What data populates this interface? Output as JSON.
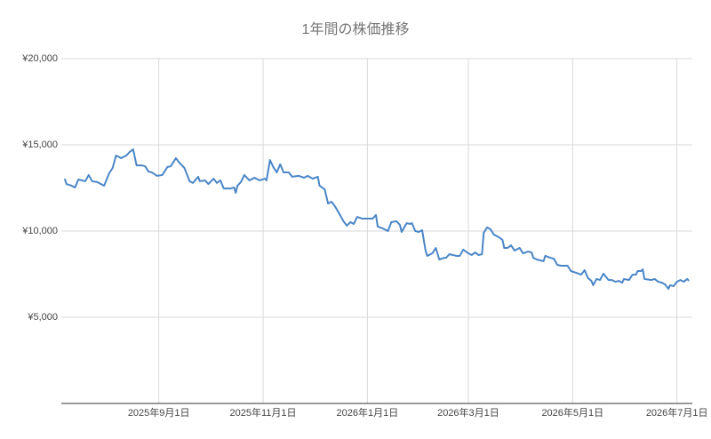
{
  "chart_data": {
    "type": "line",
    "title": "1年間の株価推移",
    "x": [
      "2025-07-08",
      "2025-07-09",
      "2025-07-12",
      "2025-07-14",
      "2025-07-16",
      "2025-07-20",
      "2025-07-22",
      "2025-07-24",
      "2025-07-27",
      "2025-07-31",
      "2025-08-03",
      "2025-08-05",
      "2025-08-07",
      "2025-08-10",
      "2025-08-13",
      "2025-08-15",
      "2025-08-17",
      "2025-08-19",
      "2025-08-22",
      "2025-08-24",
      "2025-08-26",
      "2025-08-28",
      "2025-08-31",
      "2025-09-03",
      "2025-09-06",
      "2025-09-08",
      "2025-09-11",
      "2025-09-13",
      "2025-09-16",
      "2025-09-19",
      "2025-09-21",
      "2025-09-24",
      "2025-09-25",
      "2025-09-28",
      "2025-09-30",
      "2025-10-03",
      "2025-10-05",
      "2025-10-07",
      "2025-10-09",
      "2025-10-13",
      "2025-10-15",
      "2025-10-16",
      "2025-10-17",
      "2025-10-19",
      "2025-10-21",
      "2025-10-24",
      "2025-10-27",
      "2025-10-30",
      "2025-11-02",
      "2025-11-03",
      "2025-11-05",
      "2025-11-07",
      "2025-11-09",
      "2025-11-11",
      "2025-11-13",
      "2025-11-16",
      "2025-11-18",
      "2025-11-22",
      "2025-11-25",
      "2025-11-27",
      "2025-11-30",
      "2025-12-03",
      "2025-12-04",
      "2025-12-07",
      "2025-12-09",
      "2025-12-11",
      "2025-12-13",
      "2025-12-16",
      "2025-12-18",
      "2025-12-20",
      "2025-12-22",
      "2025-12-24",
      "2025-12-26",
      "2025-12-29",
      "2025-12-31",
      "2026-01-04",
      "2026-01-06",
      "2026-01-07",
      "2026-01-10",
      "2026-01-13",
      "2026-01-15",
      "2026-01-18",
      "2026-01-20",
      "2026-01-21",
      "2026-01-24",
      "2026-01-26",
      "2026-01-27",
      "2026-01-29",
      "2026-01-31",
      "2026-02-02",
      "2026-02-04",
      "2026-02-05",
      "2026-02-08",
      "2026-02-10",
      "2026-02-12",
      "2026-02-15",
      "2026-02-16",
      "2026-02-18",
      "2026-02-22",
      "2026-02-24",
      "2026-02-26",
      "2026-03-01",
      "2026-03-03",
      "2026-03-05",
      "2026-03-07",
      "2026-03-09",
      "2026-03-10",
      "2026-03-12",
      "2026-03-14",
      "2026-03-16",
      "2026-03-19",
      "2026-03-21",
      "2026-03-22",
      "2026-03-24",
      "2026-03-26",
      "2026-03-28",
      "2026-03-31",
      "2026-04-02",
      "2026-04-05",
      "2026-04-07",
      "2026-04-08",
      "2026-04-10",
      "2026-04-14",
      "2026-04-15",
      "2026-04-18",
      "2026-04-20",
      "2026-04-22",
      "2026-04-24",
      "2026-04-28",
      "2026-04-30",
      "2026-05-03",
      "2026-05-06",
      "2026-05-08",
      "2026-05-10",
      "2026-05-12",
      "2026-05-13",
      "2026-05-15",
      "2026-05-17",
      "2026-05-19",
      "2026-05-22",
      "2026-05-24",
      "2026-05-26",
      "2026-05-28",
      "2026-05-30",
      "2026-05-31",
      "2026-06-03",
      "2026-06-05",
      "2026-06-07",
      "2026-06-08",
      "2026-06-10",
      "2026-06-11",
      "2026-06-12",
      "2026-06-16",
      "2026-06-18",
      "2026-06-20",
      "2026-06-22",
      "2026-06-24",
      "2026-06-26",
      "2026-06-27",
      "2026-06-29",
      "2026-07-01",
      "2026-07-03",
      "2026-07-05",
      "2026-07-07",
      "2026-07-08"
    ],
    "values": [
      13040,
      12730,
      12630,
      12530,
      12990,
      12890,
      13250,
      12890,
      12840,
      12630,
      13350,
      13660,
      14380,
      14230,
      14380,
      14590,
      14740,
      13810,
      13810,
      13760,
      13450,
      13400,
      13200,
      13250,
      13710,
      13760,
      14230,
      13970,
      13660,
      12890,
      12790,
      13150,
      12890,
      12940,
      12730,
      13040,
      12790,
      12940,
      12470,
      12470,
      12530,
      12220,
      12630,
      12840,
      13250,
      12940,
      13090,
      12940,
      13040,
      12940,
      14120,
      13710,
      13400,
      13870,
      13400,
      13400,
      13150,
      13200,
      13090,
      13200,
      13040,
      13150,
      12630,
      12420,
      11600,
      11700,
      11440,
      10930,
      10570,
      10310,
      10520,
      10410,
      10820,
      10720,
      10720,
      10720,
      10930,
      10260,
      10150,
      10000,
      10520,
      10570,
      10360,
      9950,
      10460,
      10410,
      10460,
      10000,
      9950,
      10050,
      8870,
      8560,
      8710,
      9020,
      8350,
      8450,
      8450,
      8660,
      8560,
      8560,
      8920,
      8710,
      8610,
      8760,
      8610,
      8660,
      9900,
      10210,
      10100,
      9790,
      9640,
      9480,
      9020,
      9020,
      9170,
      8870,
      9020,
      8710,
      8810,
      8760,
      8450,
      8350,
      8250,
      8560,
      8450,
      8400,
      8040,
      7990,
      7990,
      7680,
      7580,
      7470,
      7730,
      7270,
      7110,
      6860,
      7220,
      7160,
      7530,
      7160,
      7160,
      7060,
      7110,
      7010,
      7220,
      7160,
      7470,
      7470,
      7680,
      7680,
      7780,
      7220,
      7160,
      7220,
      7060,
      7010,
      6910,
      6650,
      6860,
      6800,
      7060,
      7160,
      7060,
      7220,
      7110
    ],
    "color": "#4a86c8",
    "xlim": [
      "2025-07-06",
      "2026-07-10"
    ],
    "xticks": [
      {
        "value": "2025-09-01",
        "label": "2025年9月1日"
      },
      {
        "value": "2025-11-01",
        "label": "2025年11月1日"
      },
      {
        "value": "2026-01-01",
        "label": "2026年1月1日"
      },
      {
        "value": "2026-03-01",
        "label": "2026年3月1日"
      },
      {
        "value": "2026-05-01",
        "label": "2026年5月1日"
      },
      {
        "value": "2026-07-01",
        "label": "2026年7月1日"
      }
    ],
    "ylim": [
      0,
      20000
    ],
    "yticks": [
      {
        "value": 5000,
        "label": "¥5,000"
      },
      {
        "value": 10000,
        "label": "¥10,000"
      },
      {
        "value": 15000,
        "label": "¥15,000"
      },
      {
        "value": 20000,
        "label": "¥20,000"
      }
    ],
    "grid": true
  }
}
